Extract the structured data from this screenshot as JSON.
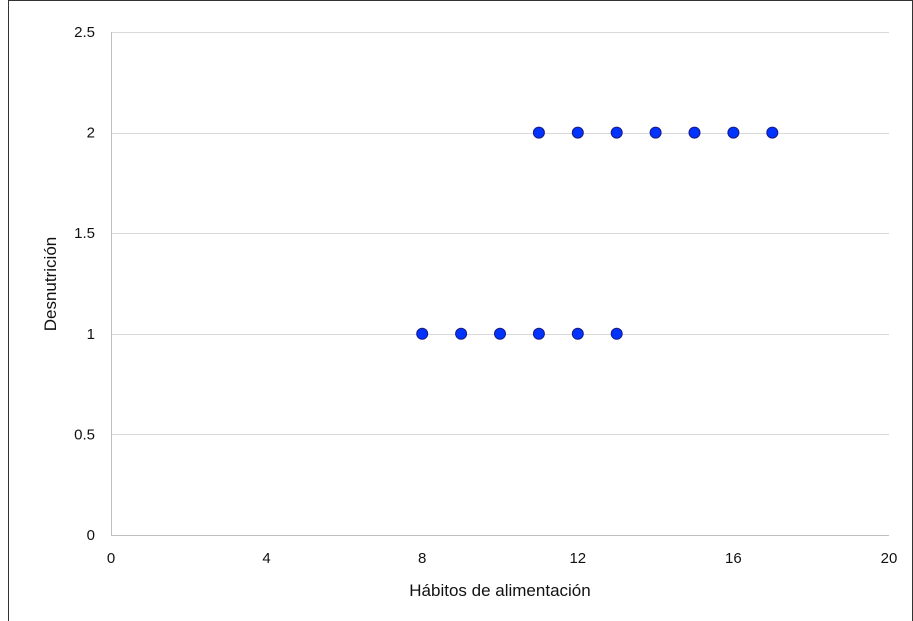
{
  "chart_data": {
    "type": "scatter",
    "title": "",
    "xlabel": "Hábitos de alimentación",
    "ylabel": "Desnutrición",
    "xlim": [
      0,
      20
    ],
    "ylim": [
      0,
      2.5
    ],
    "x_ticks": [
      0,
      4,
      8,
      12,
      16,
      20
    ],
    "y_ticks": [
      0,
      0.5,
      1,
      1.5,
      2,
      2.5
    ],
    "y_tick_labels": [
      "0",
      "0.5",
      "1",
      "1.5",
      "2",
      "2.5"
    ],
    "grid": "horizontal",
    "legend": "none",
    "marker_color": "#0033ff",
    "marker_edge_color": "#1a1a80",
    "points": [
      {
        "x": 8,
        "y": 1
      },
      {
        "x": 9,
        "y": 1
      },
      {
        "x": 10,
        "y": 1
      },
      {
        "x": 11,
        "y": 1
      },
      {
        "x": 12,
        "y": 1
      },
      {
        "x": 13,
        "y": 1
      },
      {
        "x": 11,
        "y": 2
      },
      {
        "x": 12,
        "y": 2
      },
      {
        "x": 13,
        "y": 2
      },
      {
        "x": 14,
        "y": 2
      },
      {
        "x": 15,
        "y": 2
      },
      {
        "x": 16,
        "y": 2
      },
      {
        "x": 17,
        "y": 2
      }
    ]
  }
}
